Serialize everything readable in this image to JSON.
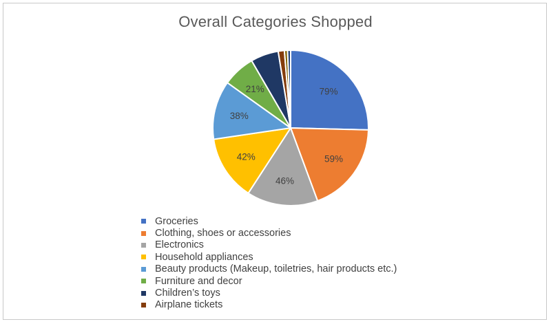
{
  "chart_data": {
    "type": "pie",
    "title": "Overall Categories Shopped",
    "legend_position": "bottom",
    "categories": [
      "Groceries",
      "Clothing, shoes or accessories",
      "Electronics",
      "Household appliances",
      "Beauty products (Makeup, toiletries, hair products etc.)",
      "Furniture and decor",
      "Children’s toys",
      "Airplane tickets"
    ],
    "values": [
      79,
      59,
      46,
      42,
      38,
      21,
      18,
      4
    ],
    "data_labels": [
      "79%",
      "59%",
      "46%",
      "42%",
      "38%",
      "21%",
      "",
      ""
    ],
    "extra_slices": [
      {
        "value": 2,
        "color": "#7f6000"
      },
      {
        "value": 2,
        "color": "#264478"
      }
    ],
    "colors": [
      "#4472c4",
      "#ed7d31",
      "#a5a5a5",
      "#ffc000",
      "#5b9bd5",
      "#70ad47",
      "#1f3864",
      "#843c0c"
    ]
  }
}
